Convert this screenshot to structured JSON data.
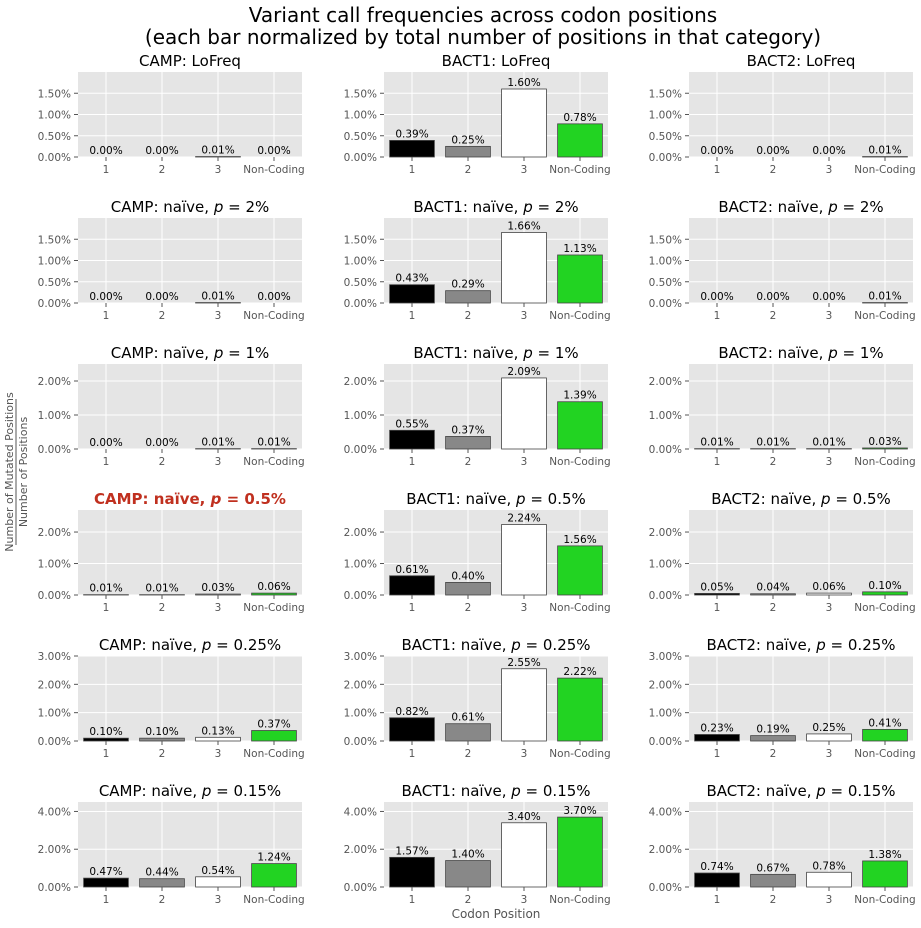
{
  "figure": {
    "title_line1": "Variant call frequencies across codon positions",
    "title_line2": "(each bar normalized by total number of positions in that category)",
    "xlabel": "Codon Position",
    "ylabel_numerator": "Number of Mutated Positions",
    "ylabel_denominator": "Number of Positions",
    "bar_colors": [
      "#000000",
      "#888888",
      "#ffffff",
      "#22d322"
    ],
    "highlight_color": "#c0301f",
    "panel_background": "#e5e5e5"
  },
  "chart_data": [
    {
      "type": "bar",
      "title": "CAMP: LoFreq",
      "categories": [
        "1",
        "2",
        "3",
        "Non-Coding"
      ],
      "values": [
        0.0,
        0.0,
        0.01,
        0.0
      ],
      "labels": [
        "0.00%",
        "0.00%",
        "0.01%",
        "0.00%"
      ],
      "ylim": [
        0,
        2.0
      ],
      "yticks": [
        "0.00%",
        "0.50%",
        "1.00%",
        "1.50%"
      ]
    },
    {
      "type": "bar",
      "title": "BACT1: LoFreq",
      "categories": [
        "1",
        "2",
        "3",
        "Non-Coding"
      ],
      "values": [
        0.39,
        0.25,
        1.6,
        0.78
      ],
      "labels": [
        "0.39%",
        "0.25%",
        "1.60%",
        "0.78%"
      ],
      "ylim": [
        0,
        2.0
      ],
      "yticks": [
        "0.00%",
        "0.50%",
        "1.00%",
        "1.50%"
      ]
    },
    {
      "type": "bar",
      "title": "BACT2: LoFreq",
      "categories": [
        "1",
        "2",
        "3",
        "Non-Coding"
      ],
      "values": [
        0.0,
        0.0,
        0.0,
        0.01
      ],
      "labels": [
        "0.00%",
        "0.00%",
        "0.00%",
        "0.01%"
      ],
      "ylim": [
        0,
        2.0
      ],
      "yticks": [
        "0.00%",
        "0.50%",
        "1.00%",
        "1.50%"
      ]
    },
    {
      "type": "bar",
      "title": "CAMP: naïve, p = 2%",
      "title_prefix": "CAMP: naïve, ",
      "title_suffix": " = 2%",
      "categories": [
        "1",
        "2",
        "3",
        "Non-Coding"
      ],
      "values": [
        0.0,
        0.0,
        0.01,
        0.0
      ],
      "labels": [
        "0.00%",
        "0.00%",
        "0.01%",
        "0.00%"
      ],
      "ylim": [
        0,
        2.0
      ],
      "yticks": [
        "0.00%",
        "0.50%",
        "1.00%",
        "1.50%"
      ]
    },
    {
      "type": "bar",
      "title": "BACT1: naïve, p = 2%",
      "title_prefix": "BACT1: naïve, ",
      "title_suffix": " = 2%",
      "categories": [
        "1",
        "2",
        "3",
        "Non-Coding"
      ],
      "values": [
        0.43,
        0.29,
        1.66,
        1.13
      ],
      "labels": [
        "0.43%",
        "0.29%",
        "1.66%",
        "1.13%"
      ],
      "ylim": [
        0,
        2.0
      ],
      "yticks": [
        "0.00%",
        "0.50%",
        "1.00%",
        "1.50%"
      ]
    },
    {
      "type": "bar",
      "title": "BACT2: naïve, p = 2%",
      "title_prefix": "BACT2: naïve, ",
      "title_suffix": " = 2%",
      "categories": [
        "1",
        "2",
        "3",
        "Non-Coding"
      ],
      "values": [
        0.0,
        0.0,
        0.0,
        0.01
      ],
      "labels": [
        "0.00%",
        "0.00%",
        "0.00%",
        "0.01%"
      ],
      "ylim": [
        0,
        2.0
      ],
      "yticks": [
        "0.00%",
        "0.50%",
        "1.00%",
        "1.50%"
      ]
    },
    {
      "type": "bar",
      "title": "CAMP: naïve, p = 1%",
      "title_prefix": "CAMP: naïve, ",
      "title_suffix": " = 1%",
      "categories": [
        "1",
        "2",
        "3",
        "Non-Coding"
      ],
      "values": [
        0.0,
        0.0,
        0.01,
        0.01
      ],
      "labels": [
        "0.00%",
        "0.00%",
        "0.01%",
        "0.01%"
      ],
      "ylim": [
        0,
        2.5
      ],
      "yticks": [
        "0.00%",
        "1.00%",
        "2.00%"
      ]
    },
    {
      "type": "bar",
      "title": "BACT1: naïve, p = 1%",
      "title_prefix": "BACT1: naïve, ",
      "title_suffix": " = 1%",
      "categories": [
        "1",
        "2",
        "3",
        "Non-Coding"
      ],
      "values": [
        0.55,
        0.37,
        2.09,
        1.39
      ],
      "labels": [
        "0.55%",
        "0.37%",
        "2.09%",
        "1.39%"
      ],
      "ylim": [
        0,
        2.5
      ],
      "yticks": [
        "0.00%",
        "1.00%",
        "2.00%"
      ]
    },
    {
      "type": "bar",
      "title": "BACT2: naïve, p = 1%",
      "title_prefix": "BACT2: naïve, ",
      "title_suffix": " = 1%",
      "categories": [
        "1",
        "2",
        "3",
        "Non-Coding"
      ],
      "values": [
        0.01,
        0.01,
        0.01,
        0.03
      ],
      "labels": [
        "0.01%",
        "0.01%",
        "0.01%",
        "0.03%"
      ],
      "ylim": [
        0,
        2.5
      ],
      "yticks": [
        "0.00%",
        "1.00%",
        "2.00%"
      ]
    },
    {
      "type": "bar",
      "title": "CAMP: naïve, p = 0.5%",
      "title_prefix": "CAMP: naïve, ",
      "title_suffix": " = 0.5%",
      "highlight": true,
      "categories": [
        "1",
        "2",
        "3",
        "Non-Coding"
      ],
      "values": [
        0.01,
        0.01,
        0.03,
        0.06
      ],
      "labels": [
        "0.01%",
        "0.01%",
        "0.03%",
        "0.06%"
      ],
      "ylim": [
        0,
        2.7
      ],
      "yticks": [
        "0.00%",
        "1.00%",
        "2.00%"
      ]
    },
    {
      "type": "bar",
      "title": "BACT1: naïve, p = 0.5%",
      "title_prefix": "BACT1: naïve, ",
      "title_suffix": " = 0.5%",
      "categories": [
        "1",
        "2",
        "3",
        "Non-Coding"
      ],
      "values": [
        0.61,
        0.4,
        2.24,
        1.56
      ],
      "labels": [
        "0.61%",
        "0.40%",
        "2.24%",
        "1.56%"
      ],
      "ylim": [
        0,
        2.7
      ],
      "yticks": [
        "0.00%",
        "1.00%",
        "2.00%"
      ]
    },
    {
      "type": "bar",
      "title": "BACT2: naïve, p = 0.5%",
      "title_prefix": "BACT2: naïve, ",
      "title_suffix": " = 0.5%",
      "categories": [
        "1",
        "2",
        "3",
        "Non-Coding"
      ],
      "values": [
        0.05,
        0.04,
        0.06,
        0.1
      ],
      "labels": [
        "0.05%",
        "0.04%",
        "0.06%",
        "0.10%"
      ],
      "ylim": [
        0,
        2.7
      ],
      "yticks": [
        "0.00%",
        "1.00%",
        "2.00%"
      ]
    },
    {
      "type": "bar",
      "title": "CAMP: naïve, p = 0.25%",
      "title_prefix": "CAMP: naïve, ",
      "title_suffix": " = 0.25%",
      "categories": [
        "1",
        "2",
        "3",
        "Non-Coding"
      ],
      "values": [
        0.1,
        0.1,
        0.13,
        0.37
      ],
      "labels": [
        "0.10%",
        "0.10%",
        "0.13%",
        "0.37%"
      ],
      "ylim": [
        0,
        3.0
      ],
      "yticks": [
        "0.00%",
        "1.00%",
        "2.00%",
        "3.00%"
      ]
    },
    {
      "type": "bar",
      "title": "BACT1: naïve, p = 0.25%",
      "title_prefix": "BACT1: naïve, ",
      "title_suffix": " = 0.25%",
      "categories": [
        "1",
        "2",
        "3",
        "Non-Coding"
      ],
      "values": [
        0.82,
        0.61,
        2.55,
        2.22
      ],
      "labels": [
        "0.82%",
        "0.61%",
        "2.55%",
        "2.22%"
      ],
      "ylim": [
        0,
        3.0
      ],
      "yticks": [
        "0.00%",
        "1.00%",
        "2.00%",
        "3.00%"
      ]
    },
    {
      "type": "bar",
      "title": "BACT2: naïve, p = 0.25%",
      "title_prefix": "BACT2: naïve, ",
      "title_suffix": " = 0.25%",
      "categories": [
        "1",
        "2",
        "3",
        "Non-Coding"
      ],
      "values": [
        0.23,
        0.19,
        0.25,
        0.41
      ],
      "labels": [
        "0.23%",
        "0.19%",
        "0.25%",
        "0.41%"
      ],
      "ylim": [
        0,
        3.0
      ],
      "yticks": [
        "0.00%",
        "1.00%",
        "2.00%",
        "3.00%"
      ]
    },
    {
      "type": "bar",
      "title": "CAMP: naïve, p = 0.15%",
      "title_prefix": "CAMP: naïve, ",
      "title_suffix": " = 0.15%",
      "categories": [
        "1",
        "2",
        "3",
        "Non-Coding"
      ],
      "values": [
        0.47,
        0.44,
        0.54,
        1.24
      ],
      "labels": [
        "0.47%",
        "0.44%",
        "0.54%",
        "1.24%"
      ],
      "ylim": [
        0,
        4.5
      ],
      "yticks": [
        "0.00%",
        "2.00%",
        "4.00%"
      ]
    },
    {
      "type": "bar",
      "title": "BACT1: naïve, p = 0.15%",
      "title_prefix": "BACT1: naïve, ",
      "title_suffix": " = 0.15%",
      "categories": [
        "1",
        "2",
        "3",
        "Non-Coding"
      ],
      "values": [
        1.57,
        1.4,
        3.4,
        3.7
      ],
      "labels": [
        "1.57%",
        "1.40%",
        "3.40%",
        "3.70%"
      ],
      "ylim": [
        0,
        4.5
      ],
      "yticks": [
        "0.00%",
        "2.00%",
        "4.00%"
      ]
    },
    {
      "type": "bar",
      "title": "BACT2: naïve, p = 0.15%",
      "title_prefix": "BACT2: naïve, ",
      "title_suffix": " = 0.15%",
      "categories": [
        "1",
        "2",
        "3",
        "Non-Coding"
      ],
      "values": [
        0.74,
        0.67,
        0.78,
        1.38
      ],
      "labels": [
        "0.74%",
        "0.67%",
        "0.78%",
        "1.38%"
      ],
      "ylim": [
        0,
        4.5
      ],
      "yticks": [
        "0.00%",
        "2.00%",
        "4.00%"
      ]
    }
  ]
}
